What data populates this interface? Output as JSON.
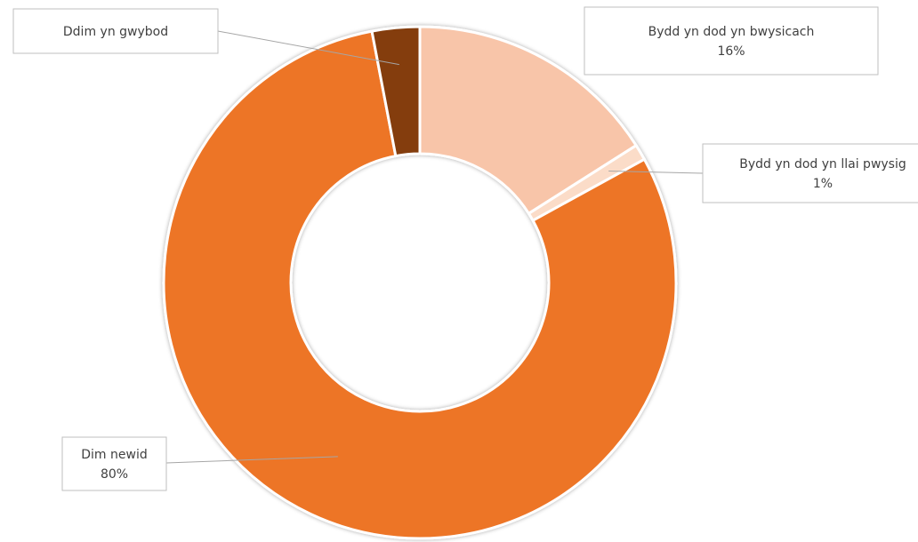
{
  "chart_data": {
    "type": "pie",
    "subtype": "doughnut",
    "title": "",
    "slices": [
      {
        "name": "Bydd yn dod yn bwysicach",
        "value": 16,
        "value_label": "16%",
        "color": "#F8C5A9"
      },
      {
        "name": "Bydd yn dod yn llai pwysig",
        "value": 1,
        "value_label": "1%",
        "color": "#FBDCC8"
      },
      {
        "name": "Dim newid",
        "value": 80,
        "value_label": "80%",
        "color": "#ED7428"
      },
      {
        "name": "Ddim yn gwybod",
        "value": 3,
        "value_label": "",
        "color": "#843C0C"
      }
    ],
    "legend": "none"
  }
}
